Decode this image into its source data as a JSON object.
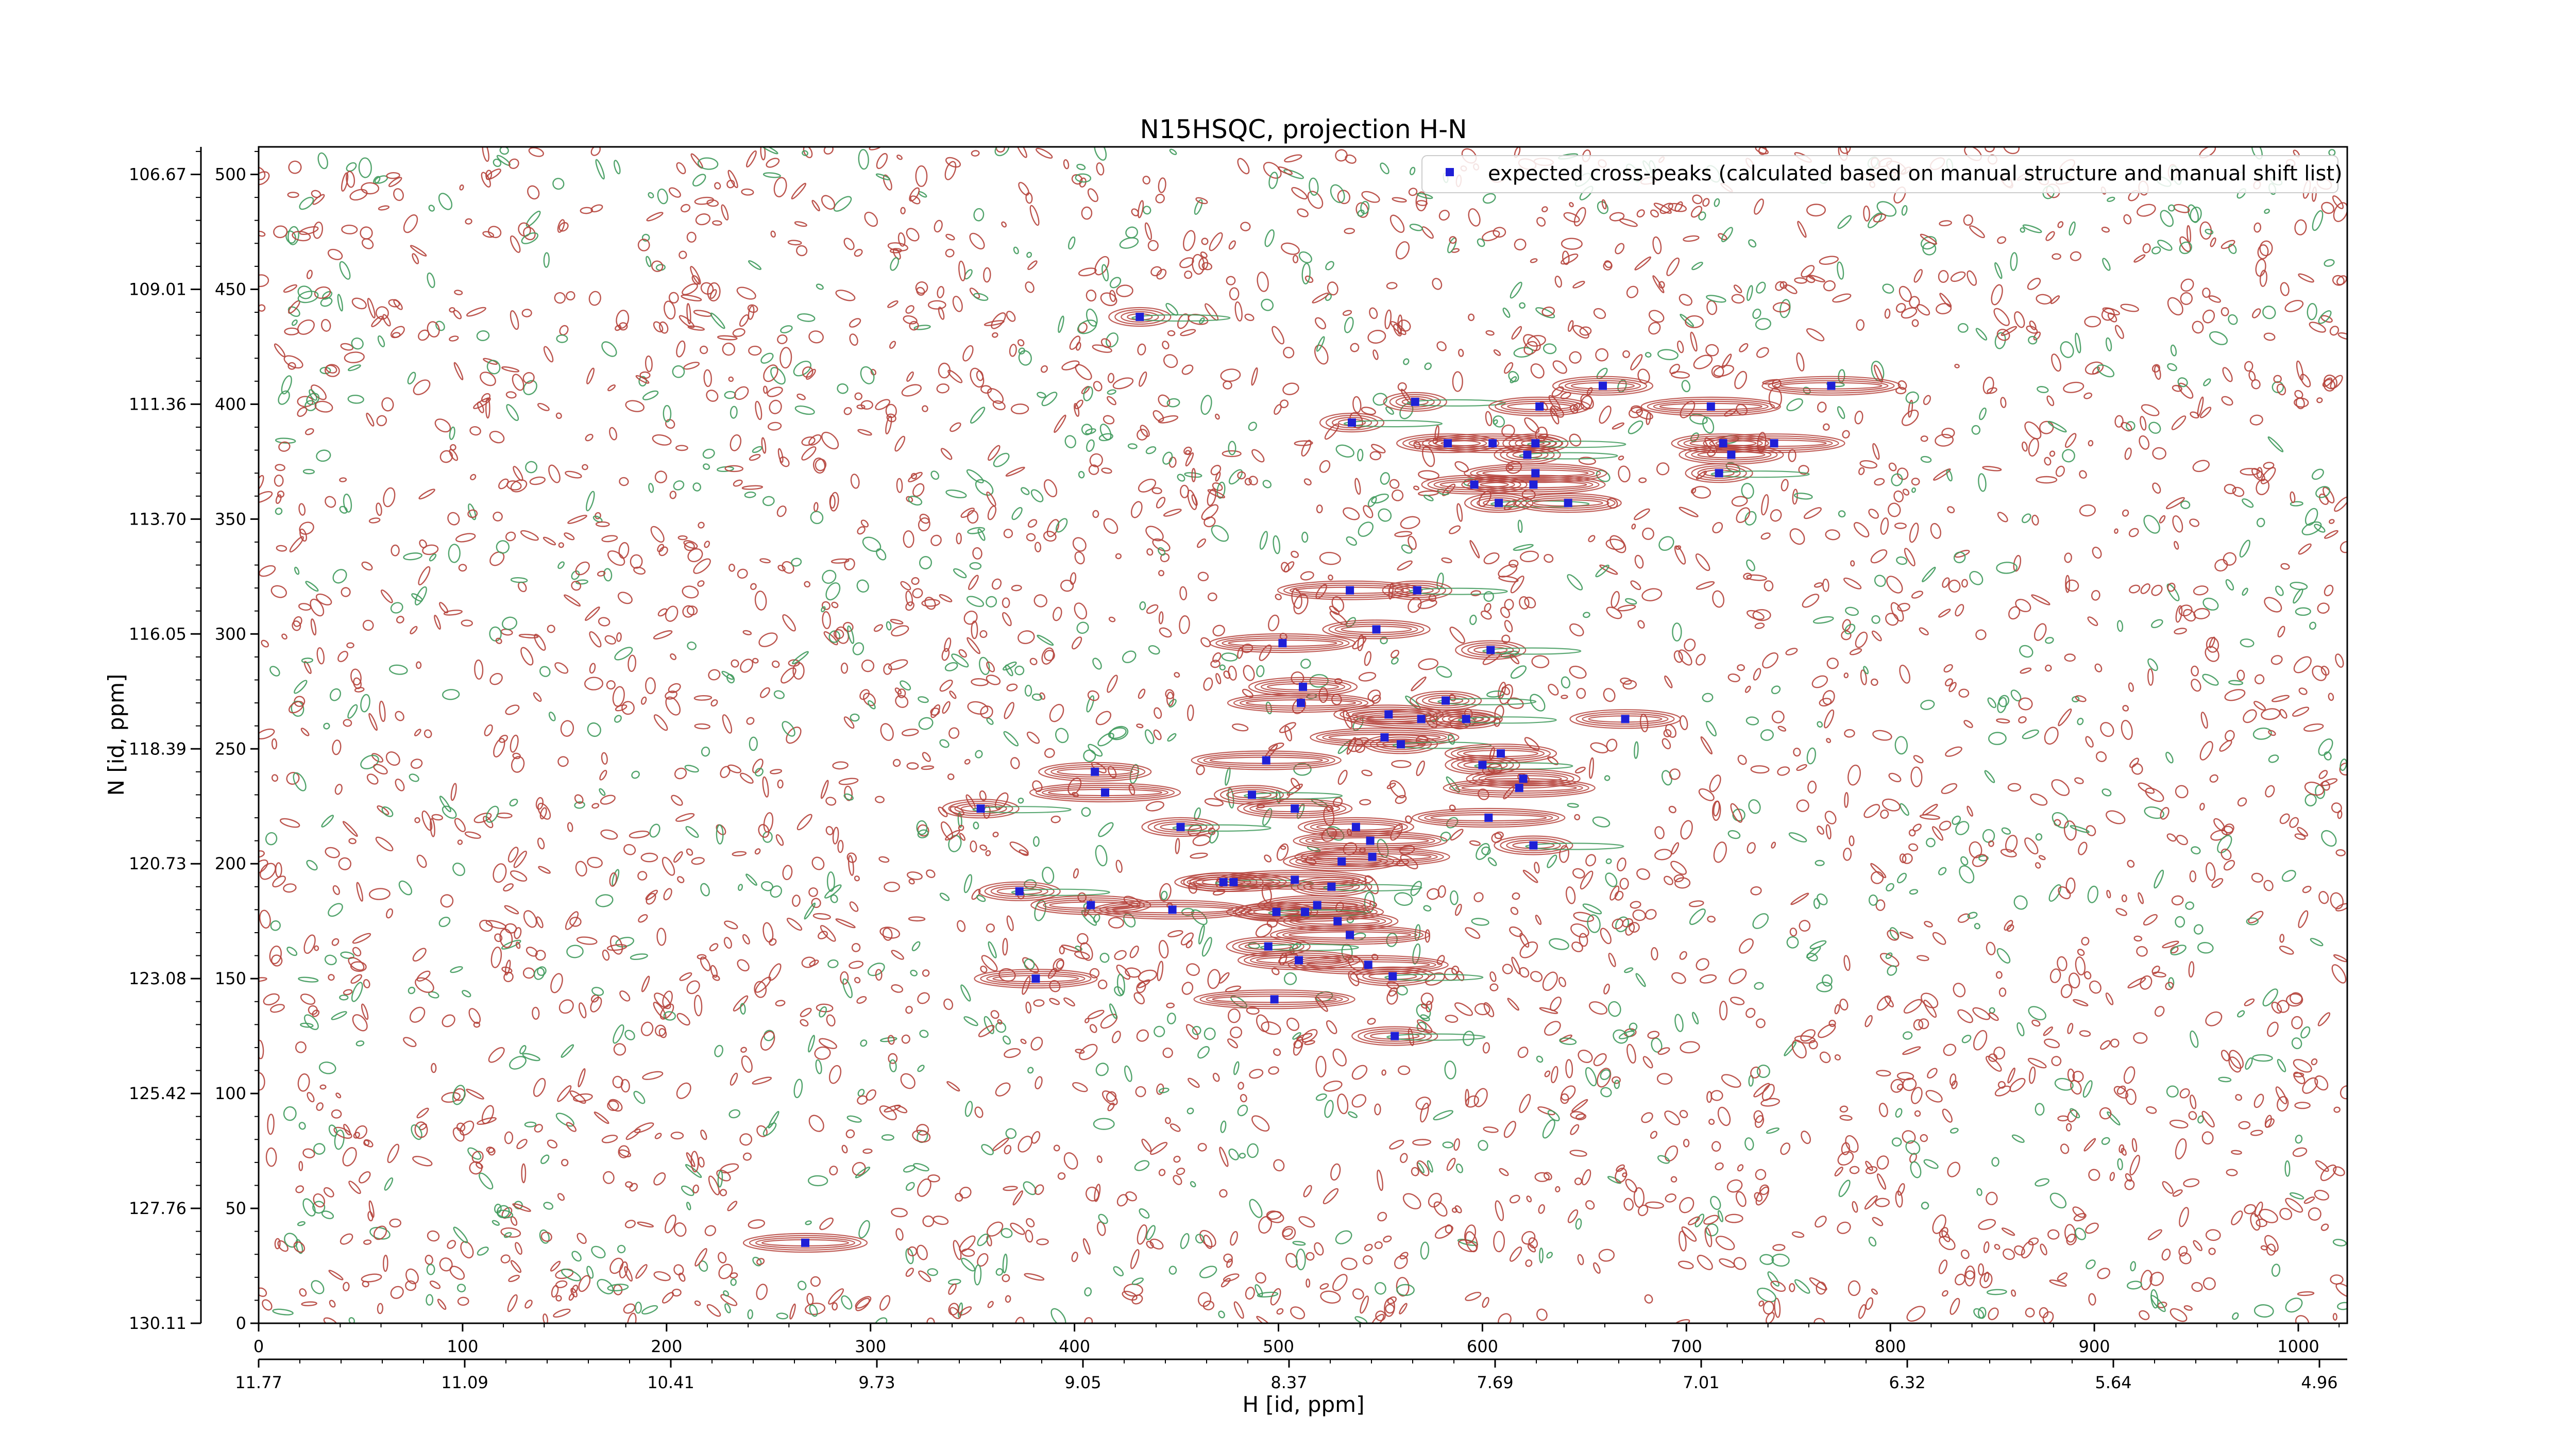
{
  "chart_data": {
    "type": "scatter",
    "title": "N15HSQC, projection H-N",
    "xlabel": "H [id, ppm]",
    "ylabel": "N [id, ppm]",
    "xlim": [
      0,
      1024
    ],
    "ylim": [
      0,
      512
    ],
    "x_ticks": [
      0,
      100,
      200,
      300,
      400,
      500,
      600,
      700,
      800,
      900,
      1000
    ],
    "y_ticks": [
      0,
      50,
      100,
      150,
      200,
      250,
      300,
      350,
      400,
      450,
      500
    ],
    "x_ppm_ticks": [
      "11.77",
      "11.09",
      "10.41",
      "9.73",
      "9.05",
      "8.37",
      "7.69",
      "7.01",
      "6.32",
      "5.64",
      "4.96"
    ],
    "y_ppm_ticks": [
      "130.11",
      "127.76",
      "125.42",
      "123.08",
      "120.73",
      "118.39",
      "116.05",
      "113.70",
      "111.36",
      "109.01",
      "106.67"
    ],
    "contour_colors": {
      "positive": "#b5423b",
      "negative": "#3f9a5c"
    },
    "marker_color": "#1f1fd6",
    "legend": {
      "label": "expected cross-peaks (calculated based on manual structure and manual shift list)",
      "position": "top-right"
    },
    "series": [
      {
        "name": "expected cross-peaks (calculated based on manual structure and manual shift list)",
        "points": [
          [
            432,
            438
          ],
          [
            659,
            408
          ],
          [
            771,
            408
          ],
          [
            567,
            401
          ],
          [
            628,
            399
          ],
          [
            712,
            399
          ],
          [
            536,
            392
          ],
          [
            583,
            383
          ],
          [
            605,
            383
          ],
          [
            626,
            383
          ],
          [
            718,
            383
          ],
          [
            743,
            383
          ],
          [
            622,
            378
          ],
          [
            722,
            378
          ],
          [
            626,
            370
          ],
          [
            716,
            370
          ],
          [
            596,
            365
          ],
          [
            625,
            365
          ],
          [
            608,
            357
          ],
          [
            642,
            357
          ],
          [
            535,
            319
          ],
          [
            568,
            319
          ],
          [
            548,
            302
          ],
          [
            502,
            296
          ],
          [
            604,
            293
          ],
          [
            512,
            277
          ],
          [
            511,
            270
          ],
          [
            582,
            271
          ],
          [
            554,
            265
          ],
          [
            570,
            263
          ],
          [
            592,
            263
          ],
          [
            670,
            263
          ],
          [
            552,
            255
          ],
          [
            560,
            252
          ],
          [
            609,
            248
          ],
          [
            494,
            245
          ],
          [
            600,
            243
          ],
          [
            410,
            240
          ],
          [
            415,
            231
          ],
          [
            487,
            230
          ],
          [
            620,
            237
          ],
          [
            618,
            233
          ],
          [
            354,
            224
          ],
          [
            508,
            224
          ],
          [
            603,
            220
          ],
          [
            452,
            216
          ],
          [
            538,
            216
          ],
          [
            545,
            210
          ],
          [
            625,
            208
          ],
          [
            531,
            201
          ],
          [
            546,
            203
          ],
          [
            473,
            192
          ],
          [
            478,
            192
          ],
          [
            508,
            193
          ],
          [
            526,
            190
          ],
          [
            519,
            182
          ],
          [
            513,
            179
          ],
          [
            373,
            188
          ],
          [
            408,
            182
          ],
          [
            448,
            180
          ],
          [
            499,
            179
          ],
          [
            529,
            175
          ],
          [
            535,
            169
          ],
          [
            495,
            164
          ],
          [
            510,
            158
          ],
          [
            544,
            156
          ],
          [
            556,
            151
          ],
          [
            381,
            150
          ],
          [
            498,
            141
          ],
          [
            557,
            125
          ],
          [
            268,
            35
          ]
        ]
      }
    ]
  }
}
